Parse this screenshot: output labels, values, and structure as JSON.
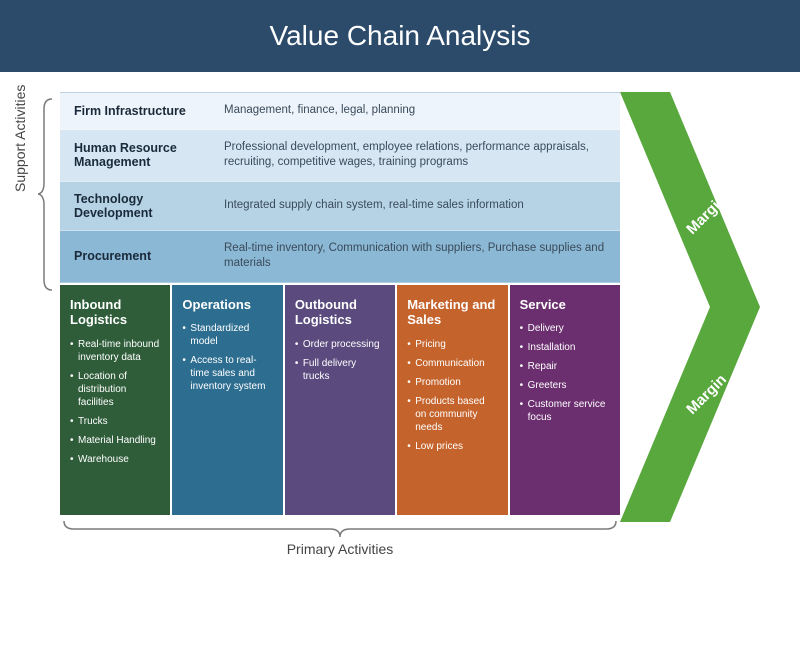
{
  "header": {
    "title": "Value Chain Analysis",
    "bg_color": "#2c4b6b",
    "text_color": "#ffffff",
    "fontsize": 28
  },
  "labels": {
    "support": "Support Activities",
    "primary": "Primary Activities",
    "margin": "Margin"
  },
  "support_rows": [
    {
      "title": "Firm Infrastructure",
      "desc": "Management, finance, legal, planning",
      "bg": "#edf4fb"
    },
    {
      "title": "Human Resource Management",
      "desc": "Professional development, employee relations, performance appraisals, recruiting, competitive wages, training programs",
      "bg": "#d6e7f3"
    },
    {
      "title": "Technology Development",
      "desc": "Integrated supply chain system, real-time sales information",
      "bg": "#b6d3e6"
    },
    {
      "title": "Procurement",
      "desc": "Real-time inventory, Communication with suppliers, Purchase supplies and materials",
      "bg": "#8bb8d4"
    }
  ],
  "primary_cols": [
    {
      "title": "Inbound Logistics",
      "bg": "#2f5d3a",
      "items": [
        "Real-time inbound inventory data",
        "Location of distribution facilities",
        "Trucks",
        "Material Handling",
        "Warehouse"
      ]
    },
    {
      "title": "Operations",
      "bg": "#2c6d90",
      "items": [
        "Standardized model",
        "Access to real-time sales and inventory system"
      ]
    },
    {
      "title": "Outbound Logistics",
      "bg": "#5a4a7d",
      "items": [
        "Order processing",
        "Full delivery trucks"
      ]
    },
    {
      "title": "Marketing and Sales",
      "bg": "#c4632b",
      "items": [
        "Pricing",
        "Communication",
        "Promotion",
        "Products based on community needs",
        "Low prices"
      ]
    },
    {
      "title": "Service",
      "bg": "#6b2e6f",
      "items": [
        "Delivery",
        "Installation",
        "Repair",
        "Greeters",
        "Customer service focus"
      ]
    }
  ],
  "margin_arrow": {
    "fill_color": "#58a83e",
    "text_color": "#ffffff"
  },
  "brace_color": "#7a7a7a"
}
